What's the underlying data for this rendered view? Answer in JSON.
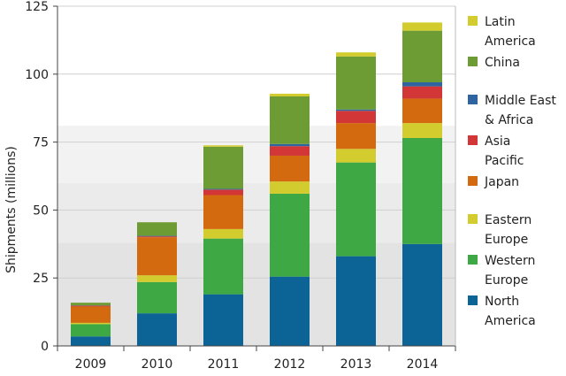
{
  "chart_data": {
    "type": "bar",
    "stacked": true,
    "title": "",
    "xlabel": "",
    "ylabel": "Shipments (millions)",
    "ylim": [
      0,
      125
    ],
    "yticks": [
      0,
      25,
      50,
      75,
      100,
      125
    ],
    "categories": [
      "2009",
      "2010",
      "2011",
      "2012",
      "2013",
      "2014"
    ],
    "series": [
      {
        "name": "North America",
        "color": "#0c6496",
        "values": [
          3.5,
          12,
          19,
          25.5,
          33,
          37.5
        ]
      },
      {
        "name": "Western Europe",
        "color": "#3ea844",
        "values": [
          4.5,
          11.5,
          20.5,
          30.5,
          34.5,
          39
        ]
      },
      {
        "name": "Eastern Europe",
        "color": "#d2cc2e",
        "values": [
          0.5,
          2.5,
          3.5,
          4.5,
          5,
          5.5
        ]
      },
      {
        "name": "Japan",
        "color": "#d46a10",
        "values": [
          6,
          14,
          12.5,
          9.5,
          9.5,
          9
        ]
      },
      {
        "name": "Asia Pacific",
        "color": "#d23636",
        "values": [
          0.3,
          0.3,
          2,
          3.5,
          4.5,
          4.5
        ]
      },
      {
        "name": "Middle East & Africa",
        "color": "#2e64a0",
        "values": [
          0.1,
          0.2,
          0.3,
          0.8,
          0.5,
          1.5
        ]
      },
      {
        "name": "China",
        "color": "#6e9c34",
        "values": [
          1,
          5,
          15.5,
          17.5,
          19.5,
          19
        ]
      },
      {
        "name": "Latin America",
        "color": "#d2cc2e",
        "values": [
          0,
          0,
          0.5,
          1,
          1.5,
          3
        ]
      }
    ],
    "legend": {
      "placement": "right",
      "groups": [
        [
          {
            "series": "Latin America",
            "lines": [
              "Latin",
              "America"
            ]
          },
          {
            "series": "China",
            "lines": [
              "China"
            ]
          }
        ],
        [
          {
            "series": "Middle East & Africa",
            "lines": [
              "Middle East",
              "& Africa"
            ]
          },
          {
            "series": "Asia Pacific",
            "lines": [
              "Asia",
              "Pacific"
            ]
          },
          {
            "series": "Japan",
            "lines": [
              "Japan"
            ]
          }
        ],
        [
          {
            "series": "Eastern Europe",
            "lines": [
              "Eastern",
              "Europe"
            ]
          },
          {
            "series": "Western Europe",
            "lines": [
              "Western",
              "Europe"
            ]
          },
          {
            "series": "North America",
            "lines": [
              "North",
              "America"
            ]
          }
        ]
      ]
    },
    "grid": true,
    "background_bands": true
  }
}
